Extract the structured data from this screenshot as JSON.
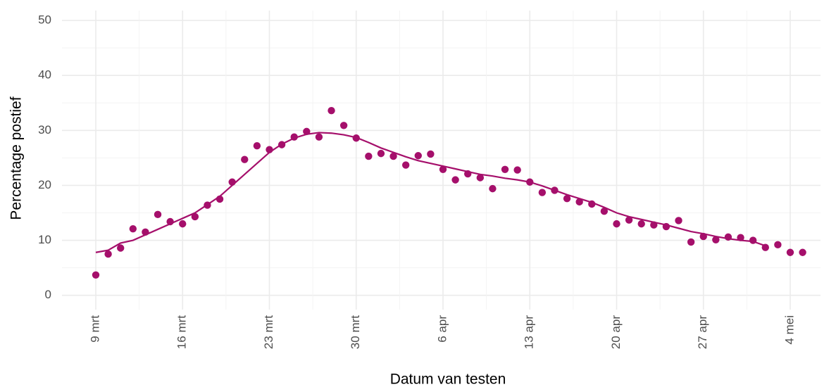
{
  "chart_data": {
    "type": "scatter",
    "x_label": "Datum van testen",
    "y_label": "Percentage postief",
    "categories": [
      "9 mrt",
      null,
      null,
      null,
      null,
      null,
      null,
      "16 mrt",
      null,
      null,
      null,
      null,
      null,
      null,
      "23 mrt",
      null,
      null,
      null,
      null,
      null,
      null,
      "30 mrt",
      null,
      null,
      null,
      null,
      null,
      null,
      "6 apr",
      null,
      null,
      null,
      null,
      null,
      null,
      "13 apr",
      null,
      null,
      null,
      null,
      null,
      null,
      "20 apr",
      null,
      null,
      null,
      null,
      null,
      null,
      "27 apr",
      null,
      null,
      null,
      null,
      null,
      null,
      "4 mei",
      null
    ],
    "values": [
      3.7,
      7.5,
      8.6,
      12.1,
      11.5,
      14.7,
      13.4,
      13.0,
      14.3,
      16.4,
      17.5,
      20.6,
      24.7,
      27.2,
      26.5,
      27.4,
      28.8,
      29.8,
      28.8,
      33.6,
      30.9,
      28.6,
      25.3,
      25.8,
      25.3,
      23.7,
      25.4,
      25.7,
      22.9,
      21.0,
      22.1,
      21.4,
      19.4,
      22.9,
      22.8,
      20.6,
      18.7,
      19.1,
      17.6,
      17.0,
      16.6,
      15.3,
      13.0,
      13.7,
      13.0,
      12.8,
      12.5,
      13.6,
      9.7,
      10.7,
      10.1,
      10.6,
      10.5,
      10.0,
      8.7,
      9.2,
      7.8,
      7.8
    ],
    "trend": [
      7.8,
      8.2,
      9.5,
      10.0,
      11.0,
      12.0,
      13.0,
      14.0,
      15.0,
      16.5,
      18.0,
      20.0,
      22.0,
      24.0,
      26.0,
      27.5,
      28.6,
      29.3,
      29.6,
      29.5,
      29.2,
      28.7,
      27.8,
      26.8,
      26.0,
      25.2,
      24.5,
      24.0,
      23.5,
      23.0,
      22.5,
      22.0,
      21.7,
      21.3,
      21.0,
      20.6,
      19.9,
      19.1,
      18.3,
      17.6,
      16.9,
      16.0,
      15.0,
      14.3,
      13.8,
      13.3,
      12.8,
      12.2,
      11.6,
      11.2,
      10.7,
      10.3,
      10.0,
      9.8,
      9.0,
      null,
      null,
      null
    ],
    "color": "#a50f6b",
    "ylim": [
      -2.6,
      51.8
    ],
    "yticks": [
      0,
      10,
      20,
      30,
      40,
      50
    ],
    "grid": true
  }
}
